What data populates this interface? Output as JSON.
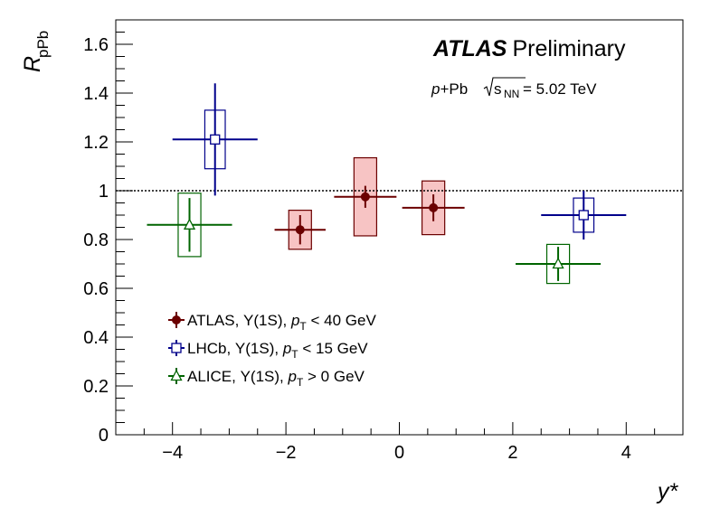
{
  "chart_data": {
    "type": "scatter",
    "title_bold": "ATLAS",
    "title_rest": "Preliminary",
    "subtitle_pre": "p",
    "subtitle_mid": "+Pb ",
    "subtitle_sqrt": "s",
    "subtitle_sub": "NN",
    "subtitle_post": " = 5.02 TeV",
    "xlabel": "y*",
    "ylabel_main": "R",
    "ylabel_sub": "pPb",
    "xlim": [
      -5,
      5
    ],
    "ylim": [
      0,
      1.7
    ],
    "xticks": [
      -4,
      -2,
      0,
      2,
      4
    ],
    "xtick_labels": [
      "−4",
      "−2",
      "0",
      "2",
      "4"
    ],
    "yticks": [
      0,
      0.2,
      0.4,
      0.6,
      0.8,
      1,
      1.2,
      1.4,
      1.6
    ],
    "ytick_labels": [
      "0",
      "0.2",
      "0.4",
      "0.6",
      "0.8",
      "1",
      "1.2",
      "1.4",
      "1.6"
    ],
    "reference_line": 1.0,
    "series": [
      {
        "name": "ATLAS",
        "legend": {
          "pre": "ATLAS, Υ(1S), ",
          "p": "p",
          "sub": "T",
          "post": " < 40 GeV"
        },
        "color": "#6b0000",
        "box_fill": "#f7c4c4",
        "marker": "circle",
        "points": [
          {
            "x": -1.75,
            "y": 0.84,
            "xerr": 0.45,
            "yerr": 0.06,
            "syst": 0.08,
            "box_half": 0.2
          },
          {
            "x": -0.6,
            "y": 0.975,
            "xerr": 0.55,
            "yerr": 0.045,
            "syst": 0.16,
            "box_half": 0.2
          },
          {
            "x": 0.6,
            "y": 0.93,
            "xerr": 0.55,
            "yerr": 0.055,
            "syst": 0.11,
            "box_half": 0.2
          }
        ]
      },
      {
        "name": "LHCb",
        "legend": {
          "pre": "LHCb,  Υ(1S), ",
          "p": "p",
          "sub": "T",
          "post": " < 15 GeV"
        },
        "color": "#00008b",
        "box_fill": "none",
        "marker": "square",
        "points": [
          {
            "x": -3.25,
            "y": 1.21,
            "xerr": 0.75,
            "yerr": 0.23,
            "syst": 0.12,
            "box_half": 0.18
          },
          {
            "x": 3.25,
            "y": 0.9,
            "xerr": 0.75,
            "yerr": 0.1,
            "syst": 0.07,
            "box_half": 0.18
          }
        ]
      },
      {
        "name": "ALICE",
        "legend": {
          "pre": "ALICE, Υ(1S), ",
          "p": "p",
          "sub": "T",
          "post": " > 0 GeV"
        },
        "color": "#006400",
        "box_fill": "none",
        "marker": "triangle",
        "points": [
          {
            "x": -3.7,
            "y": 0.86,
            "xerr": 0.75,
            "yerr": 0.11,
            "syst": 0.13,
            "box_half": 0.2
          },
          {
            "x": 2.8,
            "y": 0.7,
            "xerr": 0.75,
            "yerr": 0.07,
            "syst": 0.08,
            "box_half": 0.2
          }
        ]
      }
    ]
  }
}
